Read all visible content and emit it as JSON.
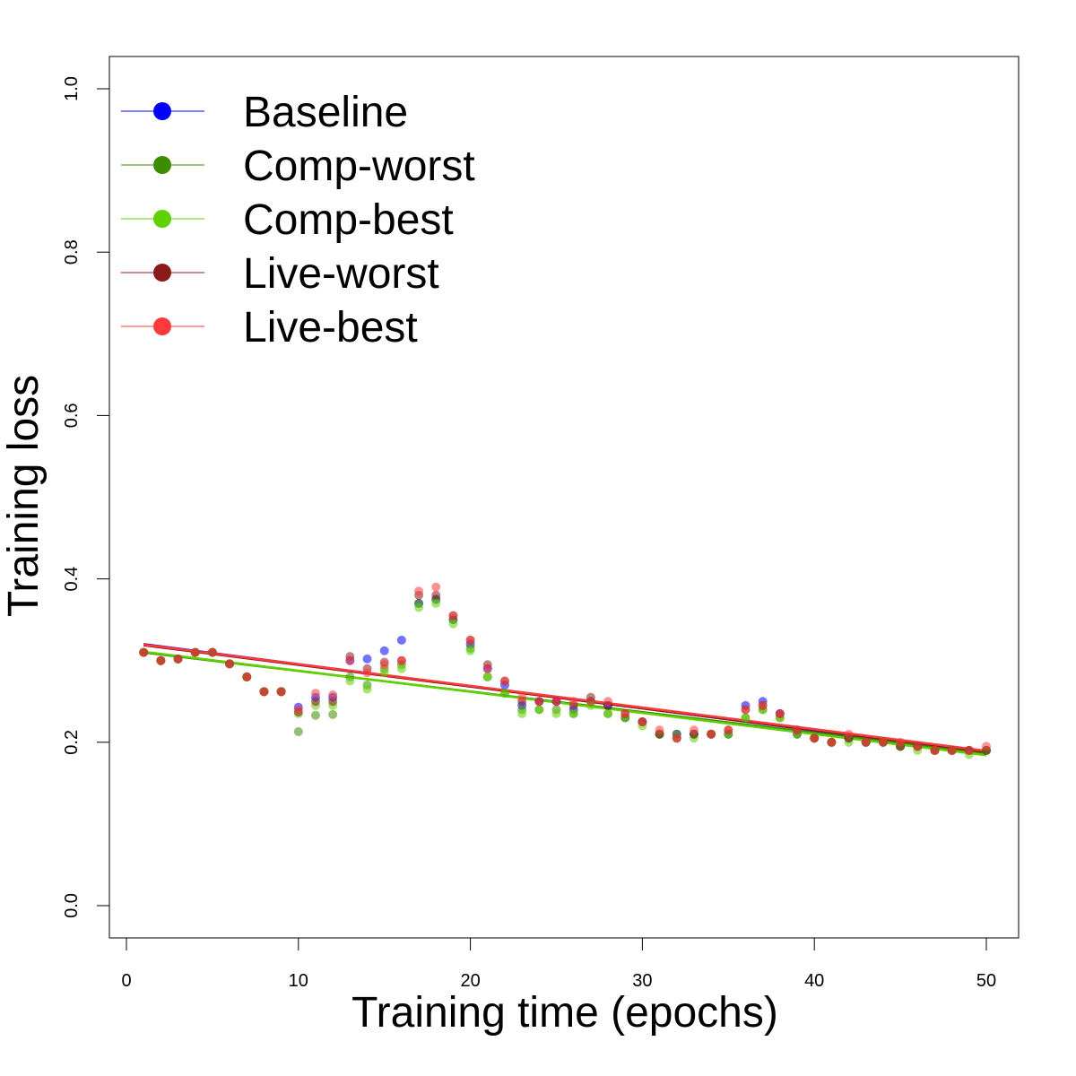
{
  "chart_data": {
    "type": "scatter",
    "title": "",
    "xlabel": "Training time (epochs)",
    "ylabel": "Training loss",
    "xlim": [
      0,
      50
    ],
    "ylim": [
      0.0,
      1.0
    ],
    "x_ticks": [
      "0",
      "10",
      "20",
      "30",
      "40",
      "50"
    ],
    "y_ticks": [
      "0.0",
      "0.2",
      "0.4",
      "0.6",
      "0.8",
      "1.0"
    ],
    "grid": false,
    "legend_position": "top-left",
    "trend_lines": true,
    "epochs": [
      1,
      2,
      3,
      4,
      5,
      6,
      7,
      8,
      9,
      10,
      11,
      12,
      13,
      14,
      15,
      16,
      17,
      18,
      19,
      20,
      21,
      22,
      23,
      24,
      25,
      26,
      27,
      28,
      29,
      30,
      31,
      32,
      33,
      34,
      35,
      36,
      37,
      38,
      39,
      40,
      41,
      42,
      43,
      44,
      45,
      46,
      47,
      48,
      49,
      50
    ],
    "series": [
      {
        "name": "Baseline",
        "color": "#0000ff",
        "values": [
          0.31,
          0.3,
          0.302,
          0.31,
          0.31,
          0.296,
          0.28,
          0.262,
          0.262,
          0.243,
          0.255,
          0.255,
          0.3,
          0.302,
          0.312,
          0.325,
          0.37,
          0.375,
          0.35,
          0.32,
          0.29,
          0.27,
          0.245,
          0.25,
          0.25,
          0.24,
          0.25,
          0.245,
          0.23,
          0.225,
          0.21,
          0.21,
          0.21,
          0.21,
          0.21,
          0.245,
          0.25,
          0.235,
          0.21,
          0.205,
          0.2,
          0.205,
          0.2,
          0.2,
          0.195,
          0.195,
          0.19,
          0.19,
          0.19,
          0.19
        ]
      },
      {
        "name": "Comp-worst",
        "color": "#3c8c00",
        "values": [
          0.31,
          0.3,
          0.302,
          0.31,
          0.31,
          0.296,
          0.28,
          0.262,
          0.262,
          0.213,
          0.233,
          0.234,
          0.28,
          0.27,
          0.29,
          0.295,
          0.37,
          0.375,
          0.35,
          0.315,
          0.28,
          0.26,
          0.24,
          0.24,
          0.24,
          0.235,
          0.25,
          0.235,
          0.23,
          0.225,
          0.21,
          0.21,
          0.21,
          0.21,
          0.21,
          0.23,
          0.24,
          0.23,
          0.21,
          0.205,
          0.2,
          0.205,
          0.2,
          0.2,
          0.195,
          0.195,
          0.19,
          0.19,
          0.19,
          0.19
        ]
      },
      {
        "name": "Comp-best",
        "color": "#5fd000",
        "values": [
          0.31,
          0.3,
          0.302,
          0.31,
          0.31,
          0.296,
          0.28,
          0.262,
          0.262,
          0.235,
          0.245,
          0.245,
          0.275,
          0.265,
          0.285,
          0.29,
          0.365,
          0.37,
          0.345,
          0.312,
          0.28,
          0.26,
          0.235,
          0.24,
          0.235,
          0.235,
          0.245,
          0.235,
          0.23,
          0.22,
          0.21,
          0.205,
          0.205,
          0.21,
          0.21,
          0.23,
          0.24,
          0.23,
          0.21,
          0.205,
          0.2,
          0.2,
          0.2,
          0.2,
          0.195,
          0.19,
          0.19,
          0.19,
          0.185,
          0.19
        ]
      },
      {
        "name": "Live-worst",
        "color": "#8b1a1a",
        "values": [
          0.31,
          0.3,
          0.302,
          0.31,
          0.31,
          0.296,
          0.28,
          0.262,
          0.262,
          0.237,
          0.25,
          0.25,
          0.305,
          0.29,
          0.298,
          0.3,
          0.38,
          0.38,
          0.355,
          0.325,
          0.295,
          0.275,
          0.25,
          0.25,
          0.25,
          0.245,
          0.255,
          0.245,
          0.235,
          0.225,
          0.21,
          0.205,
          0.21,
          0.21,
          0.215,
          0.24,
          0.245,
          0.235,
          0.215,
          0.205,
          0.2,
          0.205,
          0.2,
          0.2,
          0.195,
          0.195,
          0.19,
          0.19,
          0.19,
          0.19
        ]
      },
      {
        "name": "Live-best",
        "color": "#ff3a3a",
        "values": [
          0.31,
          0.3,
          0.302,
          0.31,
          0.31,
          0.296,
          0.28,
          0.262,
          0.262,
          0.24,
          0.26,
          0.258,
          0.3,
          0.285,
          0.295,
          0.3,
          0.385,
          0.39,
          0.355,
          0.325,
          0.29,
          0.275,
          0.255,
          0.25,
          0.25,
          0.25,
          0.25,
          0.25,
          0.235,
          0.225,
          0.215,
          0.205,
          0.215,
          0.21,
          0.215,
          0.24,
          0.245,
          0.235,
          0.215,
          0.205,
          0.2,
          0.21,
          0.2,
          0.2,
          0.2,
          0.195,
          0.19,
          0.19,
          0.19,
          0.195
        ]
      }
    ]
  }
}
